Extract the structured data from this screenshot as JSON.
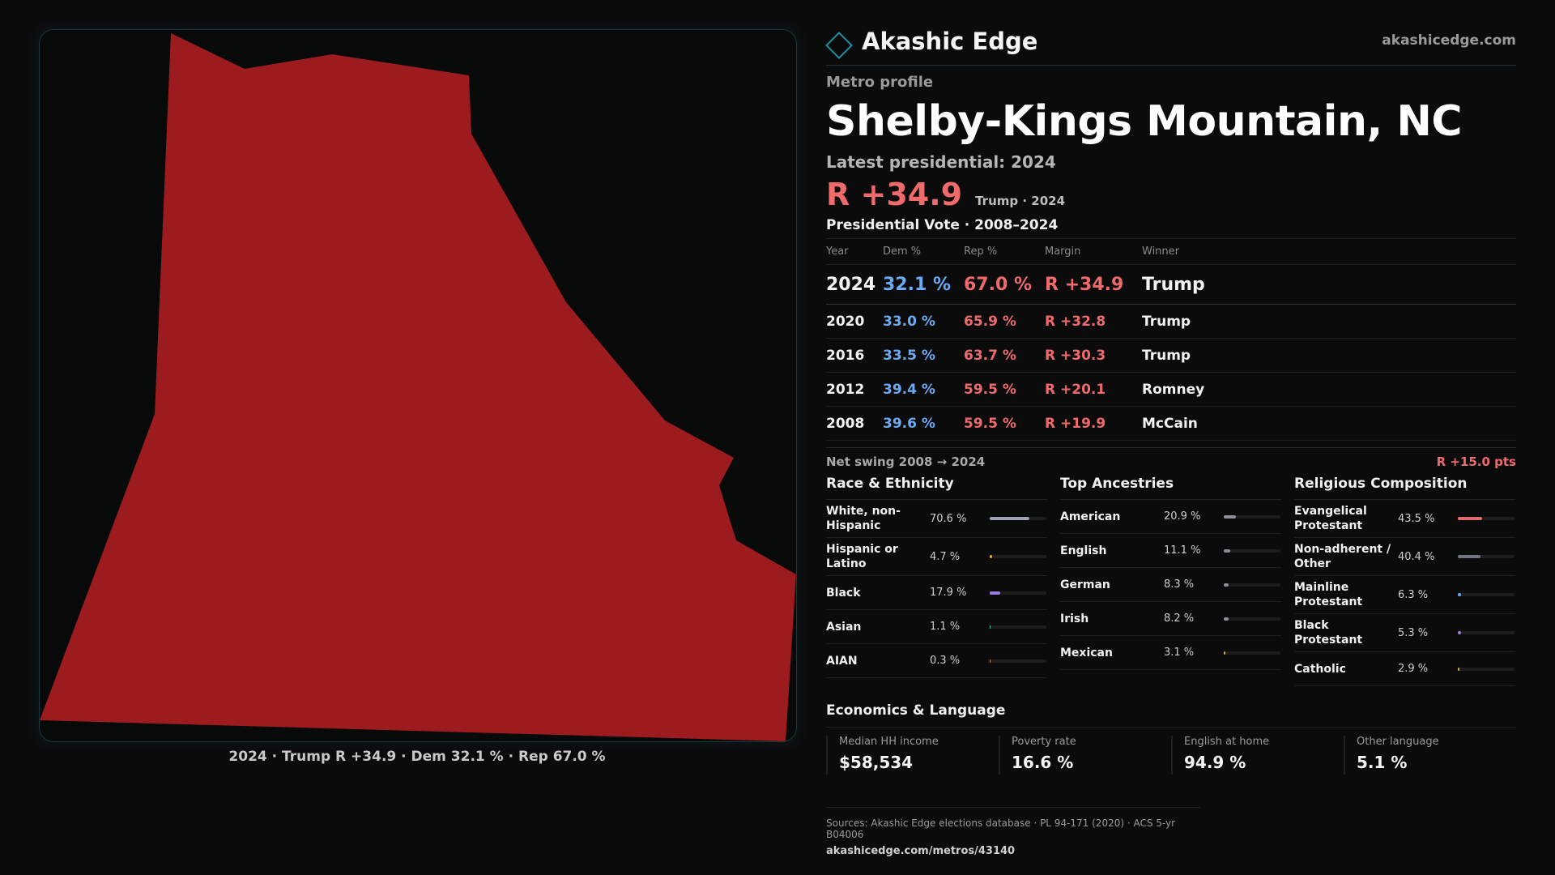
{
  "brand": {
    "name": "Akashic Edge",
    "url": "akashicedge.com"
  },
  "header": {
    "eyebrow": "Metro profile",
    "title": "Shelby-Kings Mountain, NC",
    "latest_label": "Latest presidential: 2024",
    "headline_margin": "R +34.9",
    "headline_note": "Trump · 2024"
  },
  "map": {
    "caption": "2024 · Trump R +34.9 · Dem 32.1 % · Rep 67.0 %",
    "fill_color": "#9b1b1e"
  },
  "presidential": {
    "title": "Presidential Vote · 2008–2024",
    "headers": {
      "year": "Year",
      "dem": "Dem %",
      "rep": "Rep %",
      "margin": "Margin",
      "winner": "Winner"
    },
    "rows": [
      {
        "year": "2024",
        "dem": "32.1 %",
        "rep": "67.0 %",
        "margin": "R +34.9",
        "winner": "Trump"
      },
      {
        "year": "2020",
        "dem": "33.0 %",
        "rep": "65.9 %",
        "margin": "R +32.8",
        "winner": "Trump"
      },
      {
        "year": "2016",
        "dem": "33.5 %",
        "rep": "63.7 %",
        "margin": "R +30.3",
        "winner": "Trump"
      },
      {
        "year": "2012",
        "dem": "39.4 %",
        "rep": "59.5 %",
        "margin": "R +20.1",
        "winner": "Romney"
      },
      {
        "year": "2008",
        "dem": "39.6 %",
        "rep": "59.5 %",
        "margin": "R +19.9",
        "winner": "McCain"
      }
    ],
    "swing_label": "Net swing 2008 → 2024",
    "swing_value": "R +15.0 pts"
  },
  "race": {
    "title": "Race & Ethnicity",
    "rows": [
      {
        "label": "White, non-Hispanic",
        "pct": "70.6 %",
        "value": 70.6,
        "color": "#9aa3b5"
      },
      {
        "label": "Hispanic or Latino",
        "pct": "4.7 %",
        "value": 4.7,
        "color": "#e0a03a"
      },
      {
        "label": "Black",
        "pct": "17.9 %",
        "value": 17.9,
        "color": "#9b7be0"
      },
      {
        "label": "Asian",
        "pct": "1.1 %",
        "value": 1.1,
        "color": "#3fc4a8"
      },
      {
        "label": "AIAN",
        "pct": "0.3 %",
        "value": 0.3,
        "color": "#e07a3a"
      }
    ]
  },
  "ancestry": {
    "title": "Top Ancestries",
    "rows": [
      {
        "label": "American",
        "pct": "20.9 %",
        "value": 20.9,
        "color": "#8a8f99"
      },
      {
        "label": "English",
        "pct": "11.1 %",
        "value": 11.1,
        "color": "#8a8f99"
      },
      {
        "label": "German",
        "pct": "8.3 %",
        "value": 8.3,
        "color": "#8a8f99"
      },
      {
        "label": "Irish",
        "pct": "8.2 %",
        "value": 8.2,
        "color": "#8a8f99"
      },
      {
        "label": "Mexican",
        "pct": "3.1 %",
        "value": 3.1,
        "color": "#e0a03a"
      }
    ]
  },
  "religion": {
    "title": "Religious Composition",
    "rows": [
      {
        "label": "Evangelical Protestant",
        "pct": "43.5 %",
        "value": 43.5,
        "color": "#e06a6a"
      },
      {
        "label": "Non-adherent / Other",
        "pct": "40.4 %",
        "value": 40.4,
        "color": "#6f7585"
      },
      {
        "label": "Mainline Protestant",
        "pct": "6.3 %",
        "value": 6.3,
        "color": "#6aaaf5"
      },
      {
        "label": "Black Protestant",
        "pct": "5.3 %",
        "value": 5.3,
        "color": "#9b7be0"
      },
      {
        "label": "Catholic",
        "pct": "2.9 %",
        "value": 2.9,
        "color": "#e0a03a"
      }
    ]
  },
  "economics": {
    "title": "Economics & Language",
    "items": [
      {
        "label": "Median HH income",
        "value": "$58,534"
      },
      {
        "label": "Poverty rate",
        "value": "16.6 %"
      },
      {
        "label": "English at home",
        "value": "94.9 %"
      },
      {
        "label": "Other language",
        "value": "5.1 %"
      }
    ]
  },
  "sources": {
    "line": "Sources: Akashic Edge elections database · PL 94-171 (2020) · ACS 5-yr B04006",
    "url": "akashicedge.com/metros/43140"
  }
}
